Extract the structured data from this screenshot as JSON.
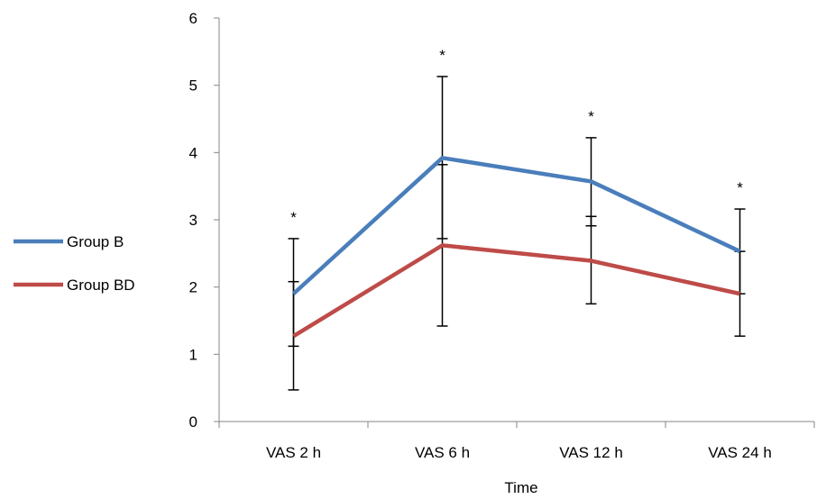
{
  "chart_data": {
    "type": "line",
    "xlabel": "Time",
    "ylabel": "",
    "categories": [
      "VAS 2 h",
      "VAS 6 h",
      "VAS 12 h",
      "VAS 24 h"
    ],
    "ylim": [
      0,
      6
    ],
    "yticks": [
      "0",
      "1",
      "2",
      "3",
      "4",
      "5",
      "6"
    ],
    "grid": false,
    "legend_position": "left",
    "series": [
      {
        "name": "Group B",
        "color": "#4a7ebb",
        "values": [
          1.9,
          3.92,
          3.57,
          2.53
        ],
        "error_low": [
          1.12,
          2.72,
          2.91,
          1.9
        ],
        "error_high": [
          2.72,
          5.13,
          4.22,
          3.16
        ]
      },
      {
        "name": "Group BD",
        "color": "#be4b48",
        "values": [
          1.27,
          2.62,
          2.39,
          1.9
        ],
        "error_low": [
          0.47,
          1.42,
          1.75,
          1.27
        ],
        "error_high": [
          2.08,
          3.82,
          3.05,
          2.53
        ]
      }
    ],
    "annotations": [
      "*",
      "*",
      "*",
      "*"
    ]
  }
}
